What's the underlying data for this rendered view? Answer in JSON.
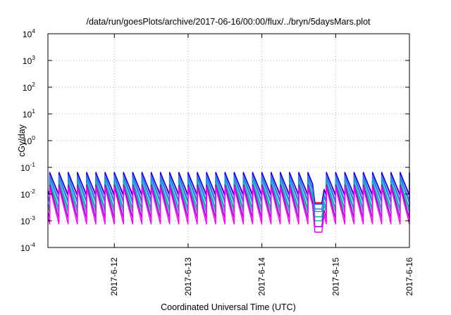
{
  "chart_data": {
    "type": "line",
    "title": "/data/run/goesPlots/archive/2017-06-16/00:00/flux/../bryn/5daysMars.plot",
    "xlabel": "Coordinated Universal Time (UTC)",
    "ylabel": "cGy/day",
    "y_scale": "log",
    "ylim": [
      0.0001,
      10000
    ],
    "xlim": [
      "2017-06-11T02:24",
      "2017-06-16T00:00"
    ],
    "y_ticks": [
      {
        "value": 0.0001,
        "base": "10",
        "exp": "-4"
      },
      {
        "value": 0.001,
        "base": "10",
        "exp": "-3"
      },
      {
        "value": 0.01,
        "base": "10",
        "exp": "-2"
      },
      {
        "value": 0.1,
        "base": "10",
        "exp": "-1"
      },
      {
        "value": 1,
        "base": "10",
        "exp": "0"
      },
      {
        "value": 10,
        "base": "10",
        "exp": "1"
      },
      {
        "value": 100,
        "base": "10",
        "exp": "2"
      },
      {
        "value": 1000,
        "base": "10",
        "exp": "3"
      },
      {
        "value": 10000,
        "base": "10",
        "exp": "4"
      }
    ],
    "x_ticks": [
      {
        "value": "2017-06-12T00:00",
        "label": "2017-6-12"
      },
      {
        "value": "2017-06-13T00:00",
        "label": "2017-6-13"
      },
      {
        "value": "2017-06-14T00:00",
        "label": "2017-6-14"
      },
      {
        "value": "2017-06-15T00:00",
        "label": "2017-6-15"
      },
      {
        "value": "2017-06-16T00:00",
        "label": "2017-6-16"
      }
    ],
    "grid": true,
    "pattern": {
      "period_hours": 3,
      "first_peak": "2017-06-11T03:00",
      "anomaly_start": "2017-06-14T17:15",
      "anomaly_end": "2017-06-14T19:30",
      "anomaly_floor_scale": 0.5
    },
    "series": [
      {
        "color": "#ff0000",
        "peak": 0.06,
        "trough": 0.0095
      },
      {
        "color": "#0000ff",
        "peak": 0.065,
        "trough": 0.0085
      },
      {
        "color": "#4169e1",
        "peak": 0.05,
        "trough": 0.0055
      },
      {
        "color": "#1e90ff",
        "peak": 0.04,
        "trough": 0.0045
      },
      {
        "color": "#00aaaa",
        "peak": 0.03,
        "trough": 0.0028
      },
      {
        "color": "#20b2aa",
        "peak": 0.025,
        "trough": 0.002
      },
      {
        "color": "#9400d3",
        "peak": 0.022,
        "trough": 0.0012
      },
      {
        "color": "#ff00ff",
        "peak": 0.018,
        "trough": 0.00075
      }
    ]
  }
}
